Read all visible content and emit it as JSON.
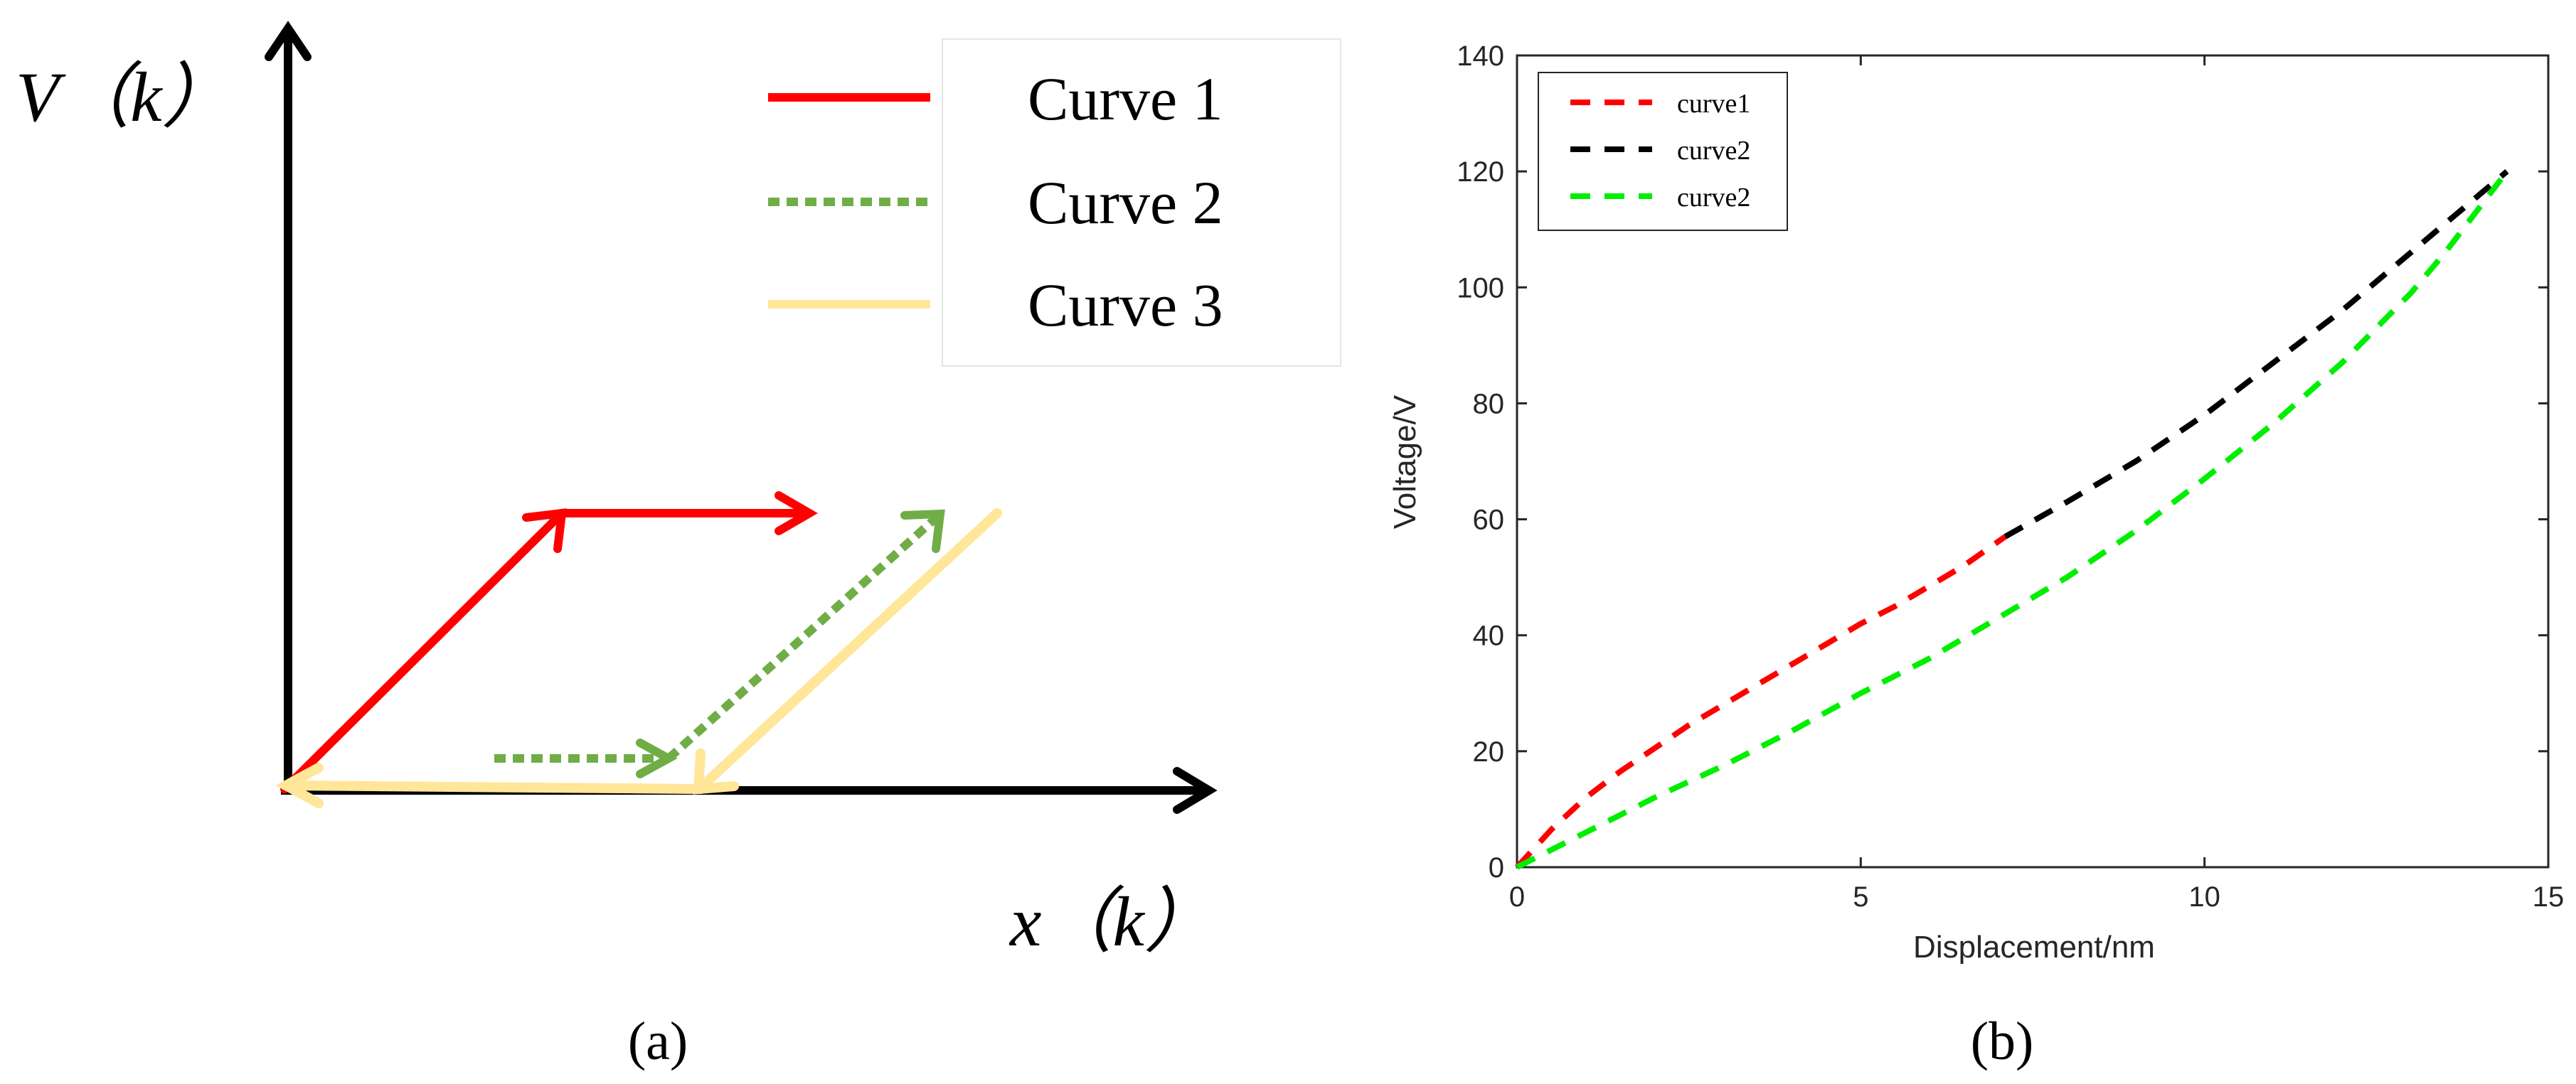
{
  "panel_a": {
    "caption": "(a)",
    "y_axis_label": "V（k）",
    "x_axis_label": "x（k）",
    "legend": [
      {
        "label": "Curve 1",
        "color": "#ff0000",
        "style": "solid"
      },
      {
        "label": "Curve 2",
        "color": "#70ad47",
        "style": "dotted"
      },
      {
        "label": "Curve 3",
        "color": "#ffe699",
        "style": "solid"
      }
    ]
  },
  "panel_b": {
    "caption": "(b)"
  },
  "chart_data": {
    "type": "line",
    "xlabel": "Displacement/nm",
    "ylabel": "Voltage/V",
    "xlim": [
      0,
      15
    ],
    "ylim": [
      0,
      140
    ],
    "xticks": [
      0,
      5,
      10,
      15
    ],
    "yticks": [
      0,
      20,
      40,
      60,
      80,
      100,
      120,
      140
    ],
    "grid": false,
    "legend_position": "top-left",
    "series": [
      {
        "name": "curve1",
        "color": "#ff0000",
        "x": [
          0,
          0.5,
          1,
          1.5,
          2,
          2.5,
          3,
          3.5,
          4,
          4.5,
          5,
          5.5,
          6,
          6.5,
          7.1
        ],
        "y": [
          0,
          6.5,
          12,
          16.5,
          20.5,
          24.5,
          28,
          31.5,
          35,
          38.5,
          42,
          45,
          48.5,
          52,
          57
        ]
      },
      {
        "name": "curve2",
        "color": "#000000",
        "x": [
          7.1,
          8,
          9,
          10,
          11,
          12,
          13,
          13.5,
          14.4
        ],
        "y": [
          57,
          63,
          70,
          78,
          87,
          96,
          106,
          111,
          120
        ]
      },
      {
        "name": "curve2",
        "color": "#00ee00",
        "x": [
          0,
          1,
          2,
          3,
          4,
          5,
          6,
          7,
          8,
          9,
          10,
          11,
          12,
          13,
          13.5,
          14.4
        ],
        "y": [
          0,
          6,
          12,
          17.5,
          23.5,
          30,
          36,
          43,
          50,
          58,
          67,
          76.5,
          87,
          99,
          106,
          120
        ]
      }
    ]
  }
}
